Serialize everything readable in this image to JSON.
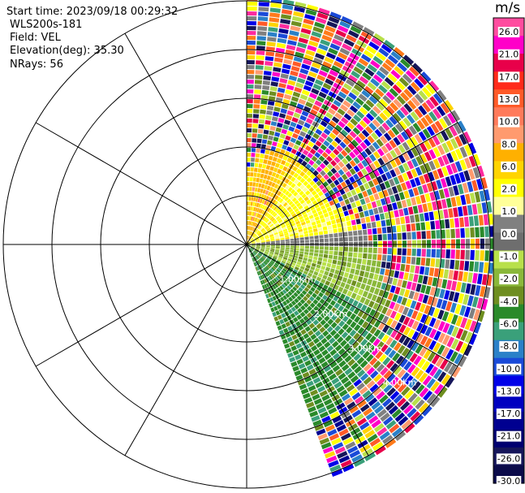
{
  "header": {
    "start_time": "Start time: 2023/09/18 00:29:32",
    "instrument": "WLS200s-181",
    "field": "Field: VEL",
    "elevation": "Elevation(deg): 35.30",
    "nrays": "NRays: 56"
  },
  "chart_data": {
    "type": "heatmap",
    "projection": "polar",
    "azimuth_range_deg": [
      0,
      160
    ],
    "n_rays": 56,
    "range_rings": [
      "1.00km",
      "2.00km",
      "3.00km",
      "4.00km"
    ],
    "rings_km": [
      1,
      2,
      3,
      4,
      5
    ],
    "spokes_every_deg": 30,
    "colorbar": {
      "unit": "m/s",
      "tick_labels": [
        "26.0",
        "21.0",
        "17.0",
        "13.0",
        "10.0",
        "8.0",
        "6.0",
        "2.0",
        "1.0",
        "0.0",
        "-1.0",
        "-2.0",
        "-4.0",
        "-6.0",
        "-8.0",
        "-10.0",
        "-13.0",
        "-17.0",
        "-21.0",
        "-26.0",
        "-30.0"
      ],
      "colors": [
        "#ff4d9f",
        "#ff00c8",
        "#e8004a",
        "#ff2a1a",
        "#ff5a28",
        "#ff7a5a",
        "#ff9a6e",
        "#ffb000",
        "#ffd400",
        "#ffff00",
        "#ffff99",
        "#808080",
        "#6e6e6e",
        "#b8e04a",
        "#8ab83a",
        "#6e8e20",
        "#2a8a2a",
        "#3aa07a",
        "#2a80c8",
        "#1a4ad8",
        "#0000e8",
        "#0000c0",
        "#000090",
        "#000070",
        "#16165a",
        "#0b0b4a"
      ]
    }
  }
}
